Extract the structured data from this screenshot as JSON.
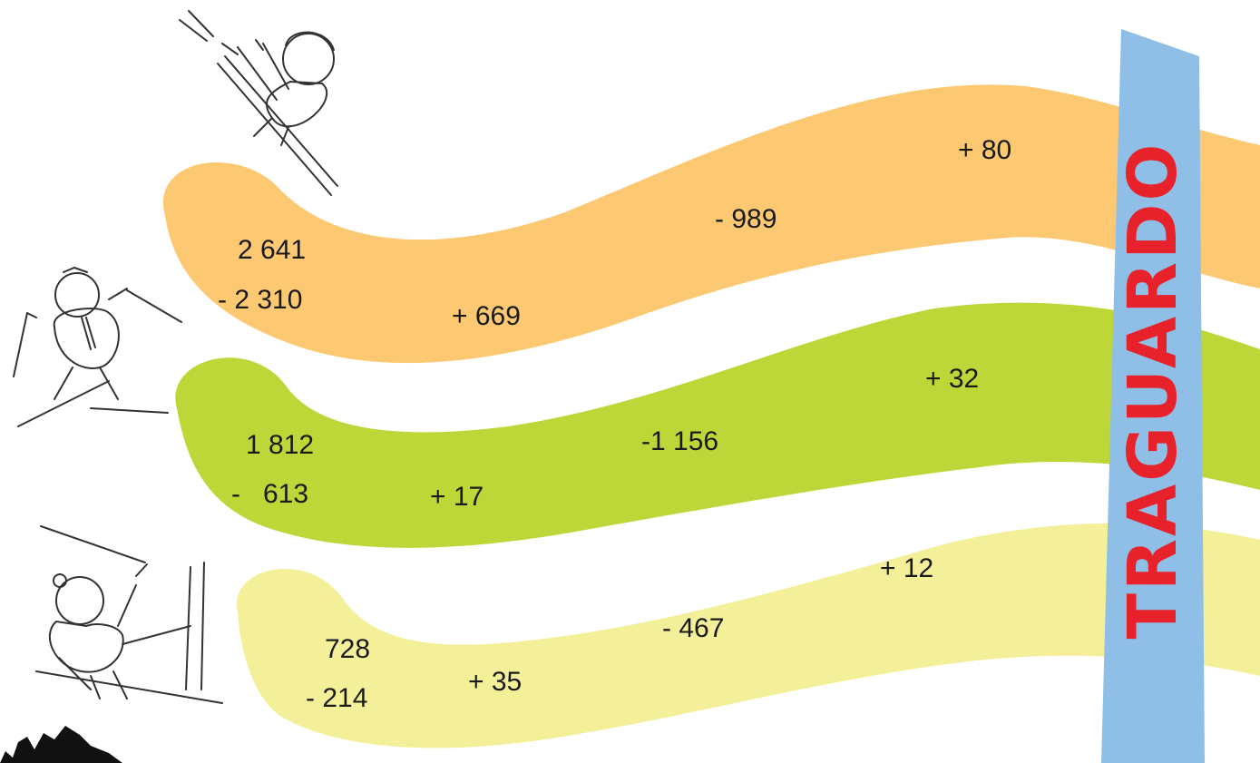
{
  "finish_label": "TRAGUARDO",
  "colors": {
    "track_top": "#fcc872",
    "track_middle": "#bcd737",
    "track_bottom": "#f4f09a",
    "finish_banner": "#8fbfe6",
    "finish_text": "#e8222a"
  },
  "tracks": [
    {
      "start": "2 641",
      "subtract": "- 2 310",
      "steps": [
        "+ 669",
        "- 989",
        "+ 80"
      ]
    },
    {
      "start": "1 812",
      "subtract": "-   613",
      "steps": [
        "+ 17",
        "-1 156",
        "+ 32"
      ]
    },
    {
      "start": "728",
      "subtract": "- 214",
      "steps": [
        "+ 35",
        "- 467",
        "+ 12"
      ]
    }
  ],
  "icons": [
    "skier-jumping-icon",
    "skier-arms-up-icon",
    "skier-poles-up-icon",
    "dark-shape-icon"
  ]
}
